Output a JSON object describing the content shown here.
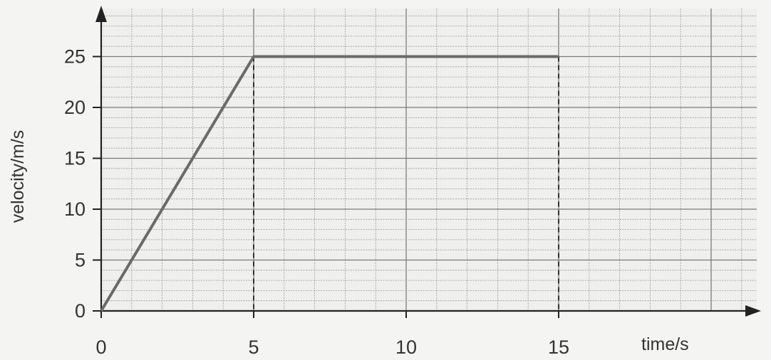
{
  "chart_data": {
    "type": "line",
    "title": "",
    "xlabel": "time/s",
    "ylabel": "velocity/m/s",
    "xlim": [
      0,
      21.5
    ],
    "ylim": [
      0,
      30
    ],
    "x_ticks": [
      0,
      5,
      10,
      15
    ],
    "y_ticks": [
      0,
      5,
      10,
      15,
      20,
      25
    ],
    "grid": true,
    "series": [
      {
        "x": [
          0,
          5,
          15
        ],
        "y": [
          0,
          25,
          25
        ]
      }
    ],
    "reference_lines": [
      {
        "x": 5,
        "y": 25
      },
      {
        "x": 15,
        "y": 25
      }
    ]
  },
  "colors": {
    "background": "#f4f4f2",
    "grid_minor": "#9a9a9a",
    "grid_major": "#7a7a7a",
    "axis": "#222222",
    "line": "#6a6a6a",
    "text": "#333333"
  }
}
